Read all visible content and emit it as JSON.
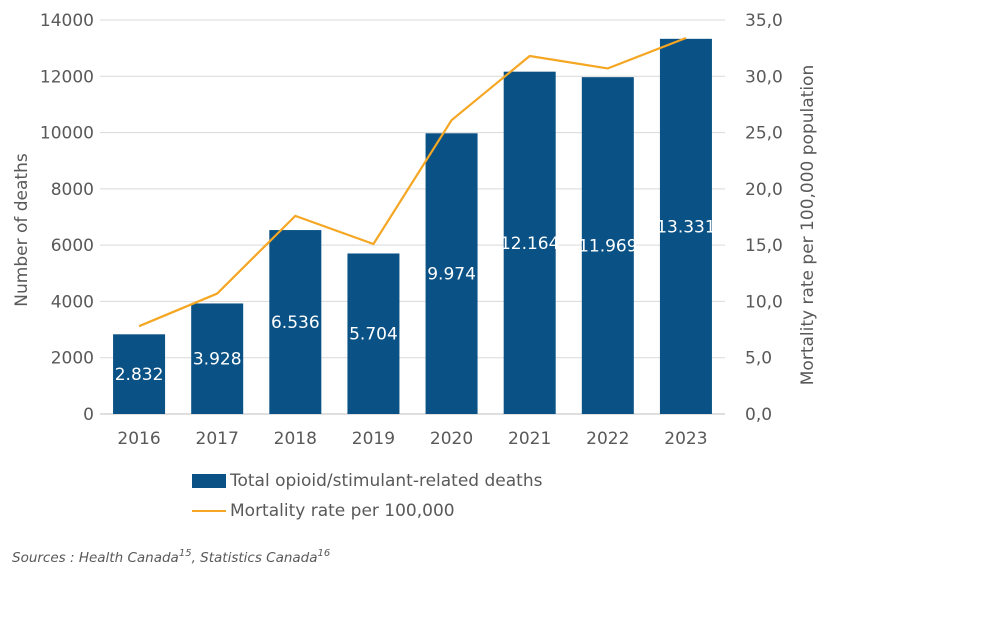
{
  "chart_data": {
    "type": "bar",
    "categories": [
      "2016",
      "2017",
      "2018",
      "2019",
      "2020",
      "2021",
      "2022",
      "2023"
    ],
    "series": [
      {
        "name": "Total opioid/stimulant-related deaths",
        "type": "bar",
        "axis": "left",
        "color": "#0a5285",
        "values": [
          2832,
          3928,
          6536,
          5704,
          9974,
          12164,
          11969,
          13331
        ],
        "labels": [
          "2.832",
          "3.928",
          "6.536",
          "5.704",
          "9.974",
          "12.164",
          "11.969",
          "13.331"
        ]
      },
      {
        "name": "Mortality rate per 100,000",
        "type": "line",
        "axis": "right",
        "color": "#f5a623",
        "values": [
          7.8,
          10.7,
          17.6,
          15.1,
          26.1,
          31.8,
          30.7,
          33.4
        ]
      }
    ],
    "ylabel": "Number of deaths",
    "ylim": [
      0,
      14000
    ],
    "yticks": [
      "0",
      "2000",
      "4000",
      "6000",
      "8000",
      "10000",
      "12000",
      "14000"
    ],
    "y2label": "Mortality rate per 100,000 population",
    "y2lim": [
      0,
      35
    ],
    "y2ticks": [
      "0,0",
      "5,0",
      "10,0",
      "15,0",
      "20,0",
      "25,0",
      "30,0",
      "35,0"
    ],
    "grid": true,
    "legend_position": "bottom"
  },
  "legend": {
    "bar_label": "Total opioid/stimulant-related deaths",
    "line_label": "Mortality rate per 100,000"
  },
  "source": {
    "prefix": "Sources : Health Canada",
    "ref1": "15",
    "sep": ",  Statistics Canada",
    "ref2": "16"
  }
}
